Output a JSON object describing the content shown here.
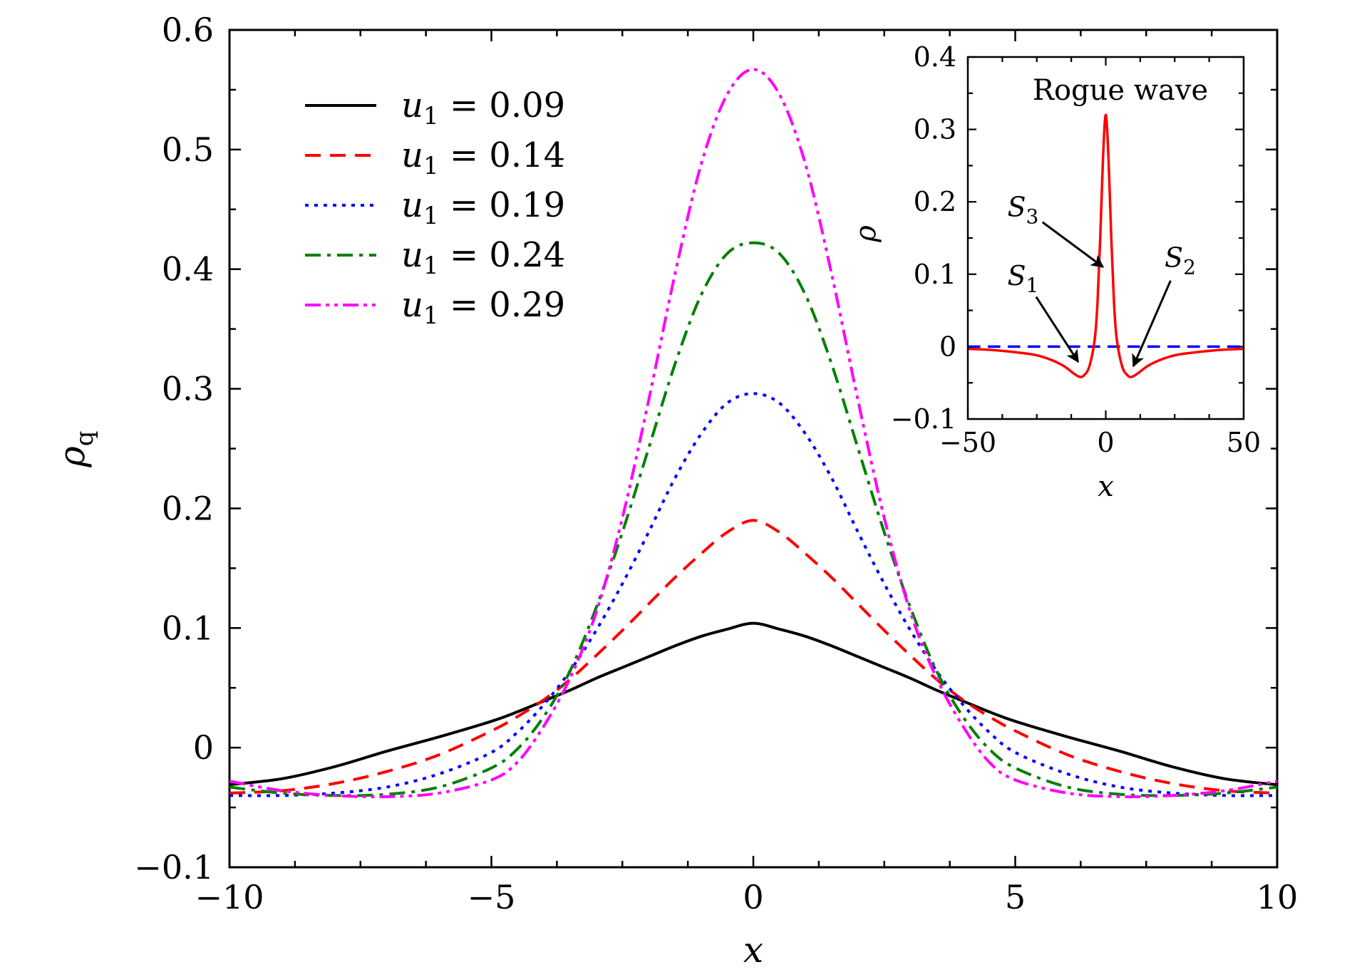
{
  "chart_data": [
    {
      "type": "line",
      "title": "",
      "xlabel": "x",
      "ylabel": "ρq",
      "ylabel_main": "ρ",
      "ylabel_sub": "q",
      "xlim": [
        -10,
        10
      ],
      "ylim": [
        -0.1,
        0.6
      ],
      "x_ticks": [
        -10,
        -5,
        0,
        5,
        10
      ],
      "x_tick_labels": [
        "−10",
        "−5",
        "0",
        "5",
        "10"
      ],
      "y_ticks": [
        -0.1,
        0,
        0.1,
        0.2,
        0.3,
        0.4,
        0.5,
        0.6
      ],
      "y_tick_labels": [
        "−0.1",
        "0",
        "0.1",
        "0.2",
        "0.3",
        "0.4",
        "0.5",
        "0.6"
      ],
      "grid": false,
      "legend_position": "top-left",
      "x": [
        -10,
        -9,
        -8,
        -7,
        -6,
        -5,
        -4.5,
        -4,
        -3.5,
        -3,
        -2.5,
        -2,
        -1.5,
        -1,
        -0.5,
        0,
        0.5,
        1,
        1.5,
        2,
        2.5,
        3,
        3.5,
        4,
        4.5,
        5,
        6,
        7,
        8,
        9,
        10
      ],
      "series": [
        {
          "name": "u1 = 0.09",
          "legend_var": "u",
          "legend_sub": "1",
          "legend_value": " = 0.09",
          "color": "#000000",
          "dash": "solid",
          "values": [
            -0.031,
            -0.026,
            -0.016,
            -0.003,
            0.009,
            0.022,
            0.03,
            0.039,
            0.048,
            0.058,
            0.067,
            0.076,
            0.085,
            0.093,
            0.099,
            0.104,
            0.099,
            0.093,
            0.085,
            0.076,
            0.067,
            0.058,
            0.048,
            0.039,
            0.03,
            0.022,
            0.009,
            -0.003,
            -0.016,
            -0.026,
            -0.031
          ]
        },
        {
          "name": "u1 = 0.14",
          "legend_var": "u",
          "legend_sub": "1",
          "legend_value": " = 0.14",
          "color": "#ff0000",
          "dash": "dashed",
          "values": [
            -0.038,
            -0.036,
            -0.03,
            -0.02,
            -0.006,
            0.014,
            0.026,
            0.04,
            0.057,
            0.077,
            0.098,
            0.12,
            0.142,
            0.162,
            0.18,
            0.19,
            0.18,
            0.162,
            0.142,
            0.12,
            0.098,
            0.077,
            0.057,
            0.04,
            0.026,
            0.014,
            -0.006,
            -0.02,
            -0.03,
            -0.036,
            -0.038
          ]
        },
        {
          "name": "u1 = 0.19",
          "legend_var": "u",
          "legend_sub": "1",
          "legend_value": " = 0.19",
          "color": "#0000ff",
          "dash": "dotted",
          "values": [
            -0.04,
            -0.04,
            -0.038,
            -0.033,
            -0.022,
            -0.004,
            0.013,
            0.036,
            0.064,
            0.098,
            0.137,
            0.18,
            0.225,
            0.262,
            0.288,
            0.296,
            0.288,
            0.262,
            0.225,
            0.18,
            0.137,
            0.098,
            0.064,
            0.036,
            0.013,
            -0.004,
            -0.022,
            -0.033,
            -0.038,
            -0.04,
            -0.04
          ]
        },
        {
          "name": "u1 = 0.24",
          "legend_var": "u",
          "legend_sub": "1",
          "legend_value": " = 0.24",
          "color": "#008000",
          "dash": "dashdot",
          "values": [
            -0.033,
            -0.038,
            -0.04,
            -0.039,
            -0.033,
            -0.017,
            -0.001,
            0.026,
            0.064,
            0.117,
            0.18,
            0.25,
            0.32,
            0.378,
            0.413,
            0.422,
            0.413,
            0.378,
            0.32,
            0.25,
            0.18,
            0.117,
            0.064,
            0.026,
            -0.001,
            -0.017,
            -0.033,
            -0.039,
            -0.04,
            -0.038,
            -0.033
          ]
        },
        {
          "name": "u1 = 0.29",
          "legend_var": "u",
          "legend_sub": "1",
          "legend_value": " = 0.29",
          "color": "#ff00ff",
          "dash": "dashdotdot",
          "values": [
            -0.028,
            -0.036,
            -0.04,
            -0.041,
            -0.038,
            -0.027,
            -0.012,
            0.018,
            0.058,
            0.113,
            0.192,
            0.29,
            0.395,
            0.487,
            0.546,
            0.567,
            0.546,
            0.487,
            0.395,
            0.29,
            0.192,
            0.113,
            0.058,
            0.018,
            -0.012,
            -0.027,
            -0.038,
            -0.041,
            -0.04,
            -0.036,
            -0.028
          ]
        }
      ]
    },
    {
      "type": "line",
      "title": "Rogue wave",
      "xlabel": "x",
      "ylabel": "ρ",
      "position": "top-right inset",
      "xlim": [
        -50,
        50
      ],
      "ylim": [
        -0.1,
        0.4
      ],
      "x_ticks": [
        -50,
        0,
        50
      ],
      "x_tick_labels": [
        "−50",
        "0",
        "50"
      ],
      "y_ticks": [
        -0.1,
        0,
        0.1,
        0.2,
        0.3,
        0.4
      ],
      "y_tick_labels": [
        "−0.1",
        "0",
        "0.1",
        "0.2",
        "0.3",
        "0.4"
      ],
      "grid": false,
      "x": [
        -50,
        -40,
        -30,
        -25,
        -20,
        -16,
        -14,
        -12,
        -10,
        -9,
        -8,
        -6,
        -4,
        -3,
        -2,
        -1,
        0,
        1,
        2,
        3,
        4,
        6,
        8,
        9,
        10,
        12,
        14,
        16,
        20,
        25,
        30,
        40,
        50
      ],
      "series": [
        {
          "name": "",
          "color": "#ff0000",
          "dash": "solid",
          "values": [
            -0.003,
            -0.005,
            -0.009,
            -0.012,
            -0.018,
            -0.025,
            -0.03,
            -0.036,
            -0.041,
            -0.042,
            -0.04,
            -0.028,
            0.01,
            0.06,
            0.15,
            0.26,
            0.32,
            0.26,
            0.15,
            0.06,
            0.01,
            -0.028,
            -0.04,
            -0.042,
            -0.041,
            -0.036,
            -0.03,
            -0.025,
            -0.018,
            -0.012,
            -0.009,
            -0.005,
            -0.003
          ]
        },
        {
          "name": "",
          "color": "#0000ff",
          "dash": "dashed",
          "values": [
            0,
            0,
            0,
            0,
            0,
            0,
            0,
            0,
            0,
            0,
            0,
            0,
            0,
            0,
            0,
            0,
            0,
            0,
            0,
            0,
            0,
            0,
            0,
            0,
            0,
            0,
            0,
            0,
            0,
            0,
            0,
            0,
            0
          ]
        }
      ],
      "annotations": [
        {
          "var": "S",
          "sub": "3",
          "text_at": [
            -30,
            0.18
          ],
          "arrow_to": [
            -1,
            0.11
          ]
        },
        {
          "var": "S",
          "sub": "1",
          "text_at": [
            -30,
            0.085
          ],
          "arrow_to": [
            -10,
            -0.021
          ]
        },
        {
          "var": "S",
          "sub": "2",
          "text_at": [
            27,
            0.11
          ],
          "arrow_to": [
            10,
            -0.027
          ]
        }
      ]
    }
  ]
}
